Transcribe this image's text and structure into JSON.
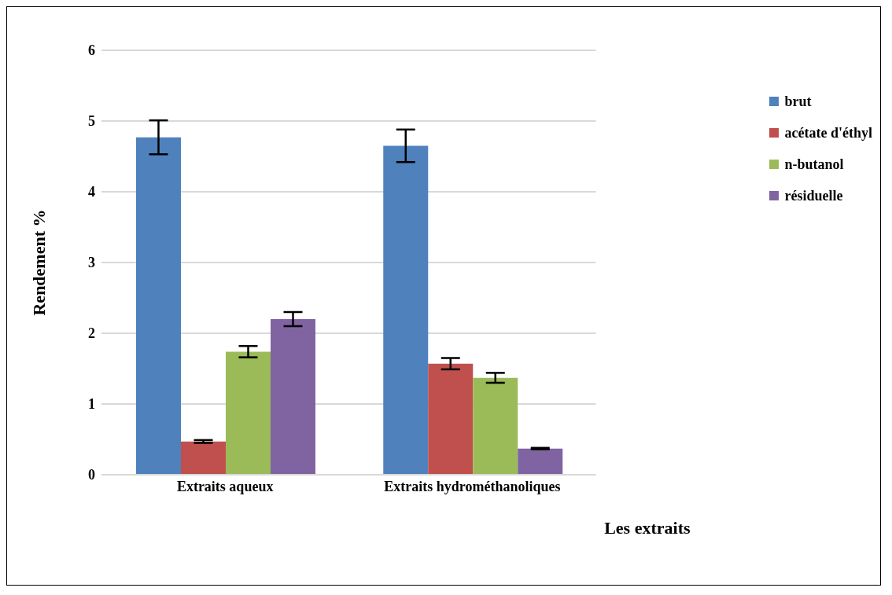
{
  "chart_data": {
    "type": "bar",
    "ylabel": "Rendement %",
    "xlabel": "Les extraits",
    "categories": [
      "Extraits aqueux",
      "Extraits hydrométhanoliques"
    ],
    "series": [
      {
        "name": "brut",
        "color": "#4f81bd",
        "values": [
          4.77,
          4.65
        ],
        "errors": [
          0.24,
          0.23
        ]
      },
      {
        "name": "acétate d'éthyl",
        "color": "#c0504d",
        "values": [
          0.47,
          1.57
        ],
        "errors": [
          0.02,
          0.08
        ]
      },
      {
        "name": "n-butanol",
        "color": "#9bbb59",
        "values": [
          1.74,
          1.37
        ],
        "errors": [
          0.08,
          0.07
        ]
      },
      {
        "name": "résiduelle",
        "color": "#8064a2",
        "values": [
          2.2,
          0.37
        ],
        "errors": [
          0.1,
          0.01
        ]
      }
    ],
    "ylim": [
      0,
      6
    ],
    "yticks": [
      0,
      1,
      2,
      3,
      4,
      5,
      6
    ],
    "grid": "y",
    "legend": "right"
  }
}
